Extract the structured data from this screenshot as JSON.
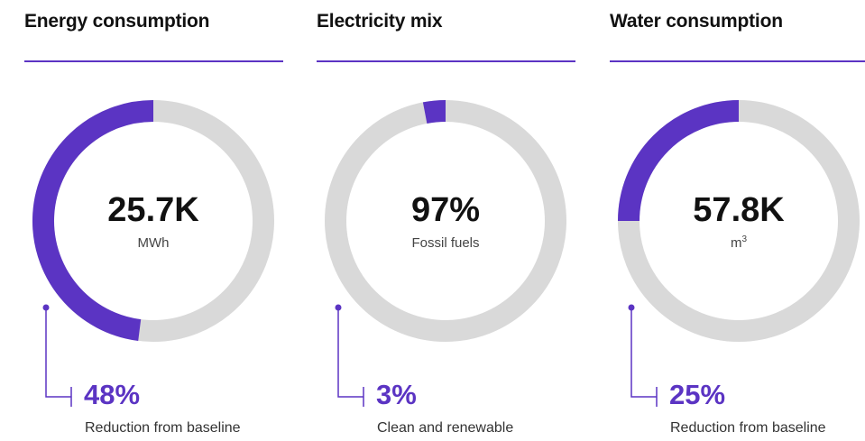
{
  "colors": {
    "accent": "#5b34c3",
    "track": "#d9d9d9",
    "text": "#111111",
    "muted": "#444444"
  },
  "chart_data": [
    {
      "type": "pie",
      "title": "Energy consumption",
      "center_value": "25.7K",
      "center_unit": "MWh",
      "highlight_fraction": 0.48,
      "stat_value": "48%",
      "stat_label": "Reduction from baseline"
    },
    {
      "type": "pie",
      "title": "Electricity mix",
      "center_value": "97%",
      "center_unit": "Fossil fuels",
      "highlight_fraction": 0.03,
      "stat_value": "3%",
      "stat_label": "Clean and renewable"
    },
    {
      "type": "pie",
      "title": "Water consumption",
      "center_value": "57.8K",
      "center_unit": "m",
      "center_unit_sup": "3",
      "highlight_fraction": 0.25,
      "stat_value": "25%",
      "stat_label": "Reduction from baseline"
    }
  ]
}
